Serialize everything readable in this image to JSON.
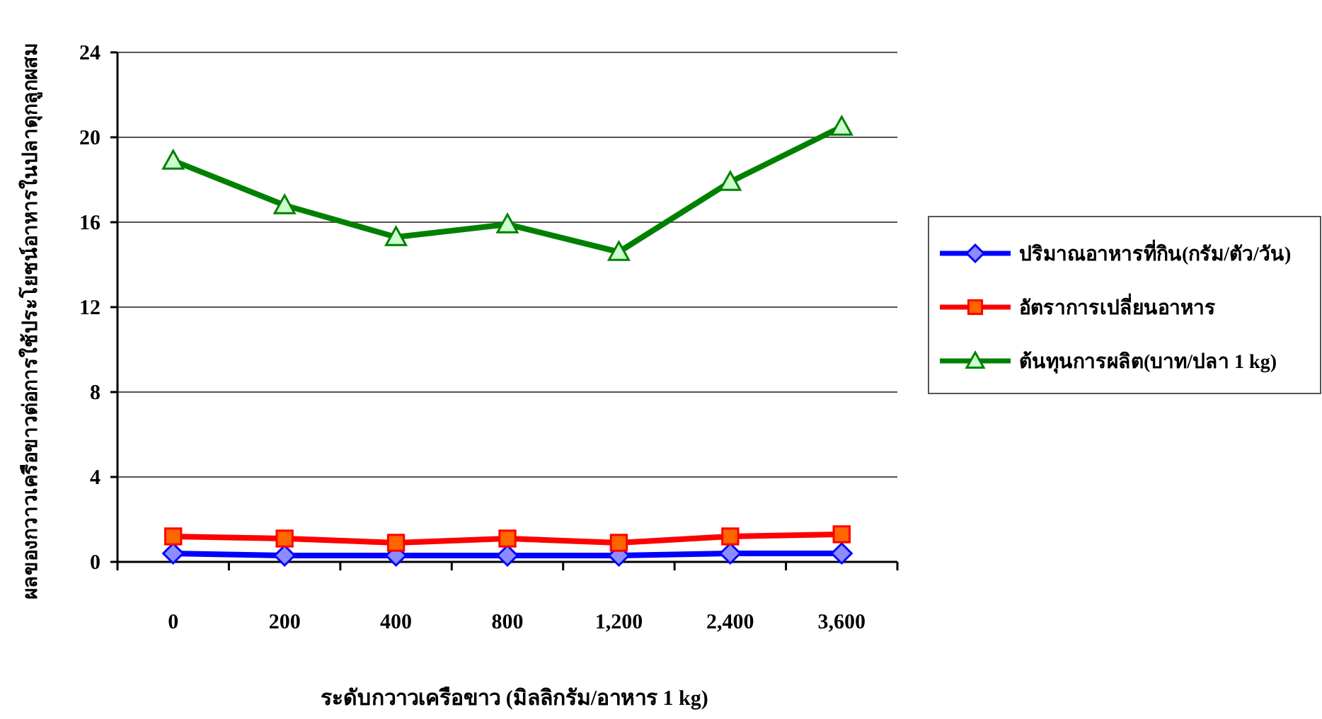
{
  "chart_data": {
    "type": "line",
    "xlabel": "ระดับกวาวเครือขาว (มิลลิกรัม/อาหาร 1 kg)",
    "ylabel": "ผลของกวาวเครือขาวต่อการใช้ประโยชน์อาหารในปลาดุกลูกผสม",
    "categories": [
      "0",
      "200",
      "400",
      "800",
      "1,200",
      "2,400",
      "3,600"
    ],
    "series": [
      {
        "name": "ปริมาณอาหารที่กิน(กรัม/ตัว/วัน)",
        "color": "#0000ff",
        "marker": "diamond",
        "values": [
          0.4,
          0.3,
          0.3,
          0.3,
          0.3,
          0.4,
          0.4
        ]
      },
      {
        "name": "อัตราการเปลี่ยนอาหาร",
        "color": "#ff0000",
        "marker": "square",
        "values": [
          1.2,
          1.1,
          0.9,
          1.1,
          0.9,
          1.2,
          1.3
        ]
      },
      {
        "name": "ต้นทุนการผลิต(บาท/ปลา 1 kg)",
        "color": "#008000",
        "marker": "triangle",
        "values": [
          18.9,
          16.8,
          15.3,
          15.9,
          14.6,
          17.9,
          20.5
        ]
      }
    ],
    "ylim": [
      0,
      24
    ],
    "yticks": [
      0,
      4,
      8,
      12,
      16,
      20,
      24
    ],
    "grid": "y",
    "legend": "right"
  }
}
